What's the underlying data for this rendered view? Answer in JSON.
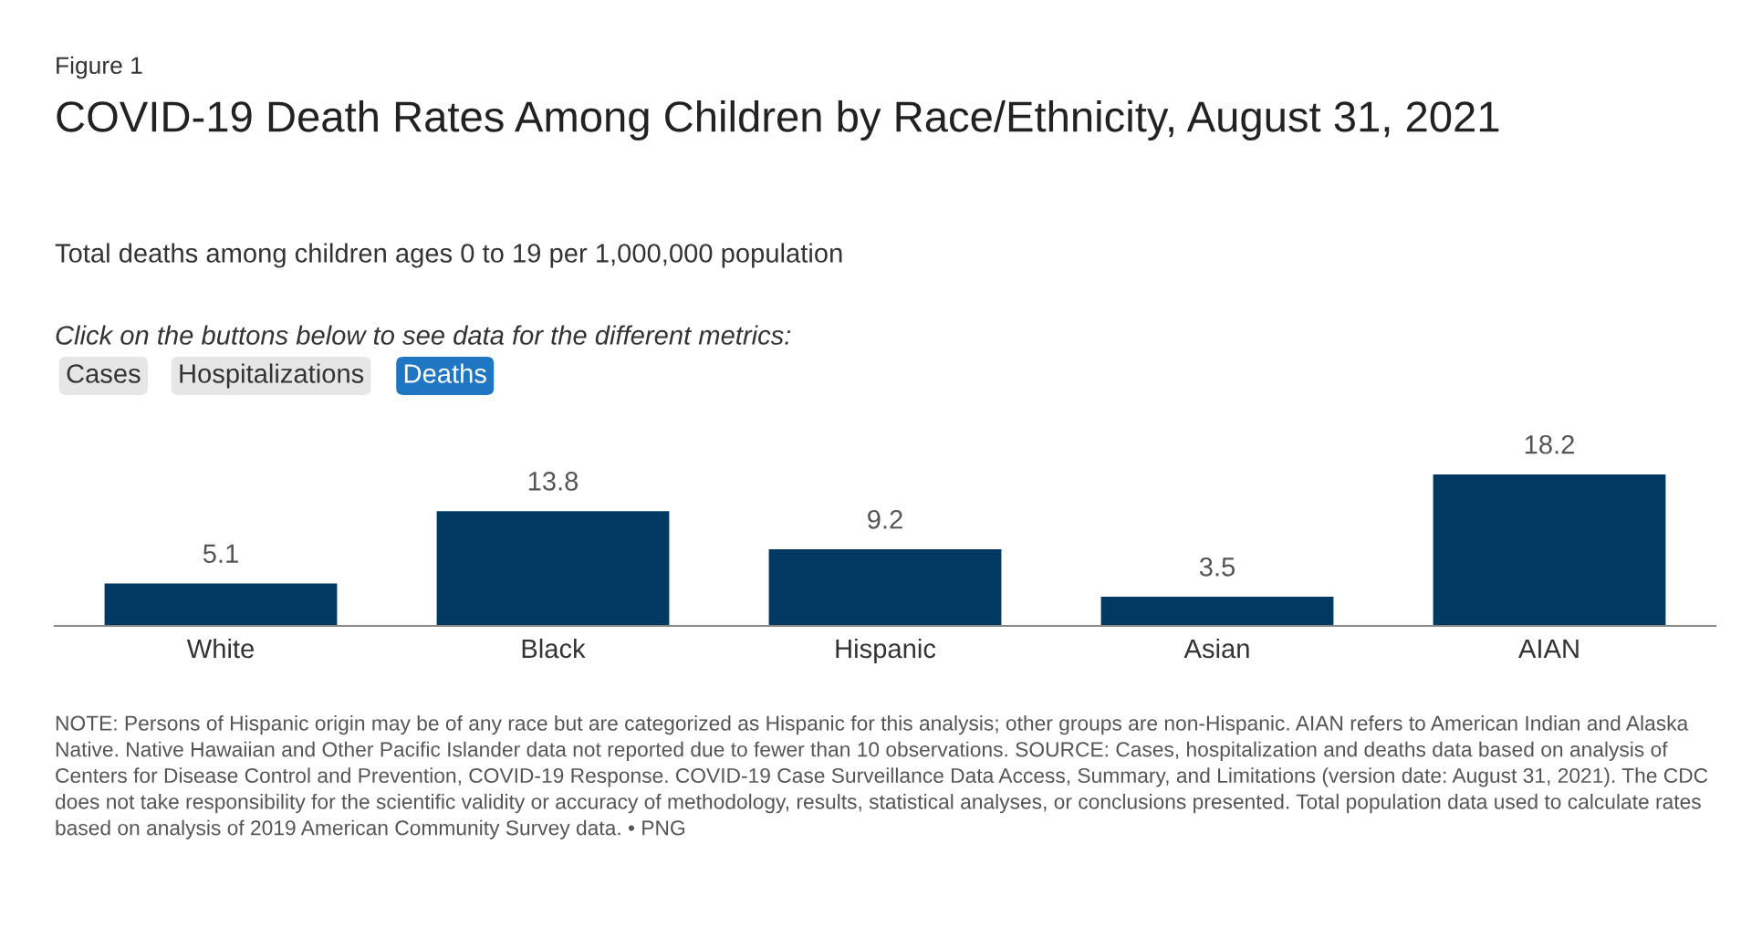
{
  "chart_data": {
    "type": "bar",
    "title": "COVID-19 Death Rates Among Children by Race/Ethnicity, August 31, 2021",
    "subtitle": "Total deaths among children ages 0 to 19 per 1,000,000 population",
    "categories": [
      "White",
      "Black",
      "Hispanic",
      "Asian",
      "AIAN"
    ],
    "values": [
      5.1,
      13.8,
      9.2,
      3.5,
      18.2
    ],
    "color": "#003a63",
    "data_labels": true,
    "annotations": [
      "Figure 1",
      "Click on the buttons below to see data for the different metrics:",
      "Cases",
      "Hospitalizations",
      "Deaths",
      "NOTE: Persons of Hispanic origin may be of any race but are categorized as Hispanic for this analysis; other groups are non-Hispanic. AIAN refers to American Indian and Alaska Native. Native Hawaiian and Other Pacific Islander data not reported due to fewer than 10 observations. SOURCE: Cases, hospitalization and deaths data based on analysis of Centers for Disease Control and Prevention, COVID-19 Response. COVID-19 Case Surveillance Data Access, Summary, and Limitations (version date: August 31, 2021). The CDC does not take responsibility for the scientific validity or accuracy of methodology, results, statistical analyses, or conclusions presented. Total population data used to calculate rates based on analysis of 2019 American Community Survey data. • PNG"
    ]
  }
}
